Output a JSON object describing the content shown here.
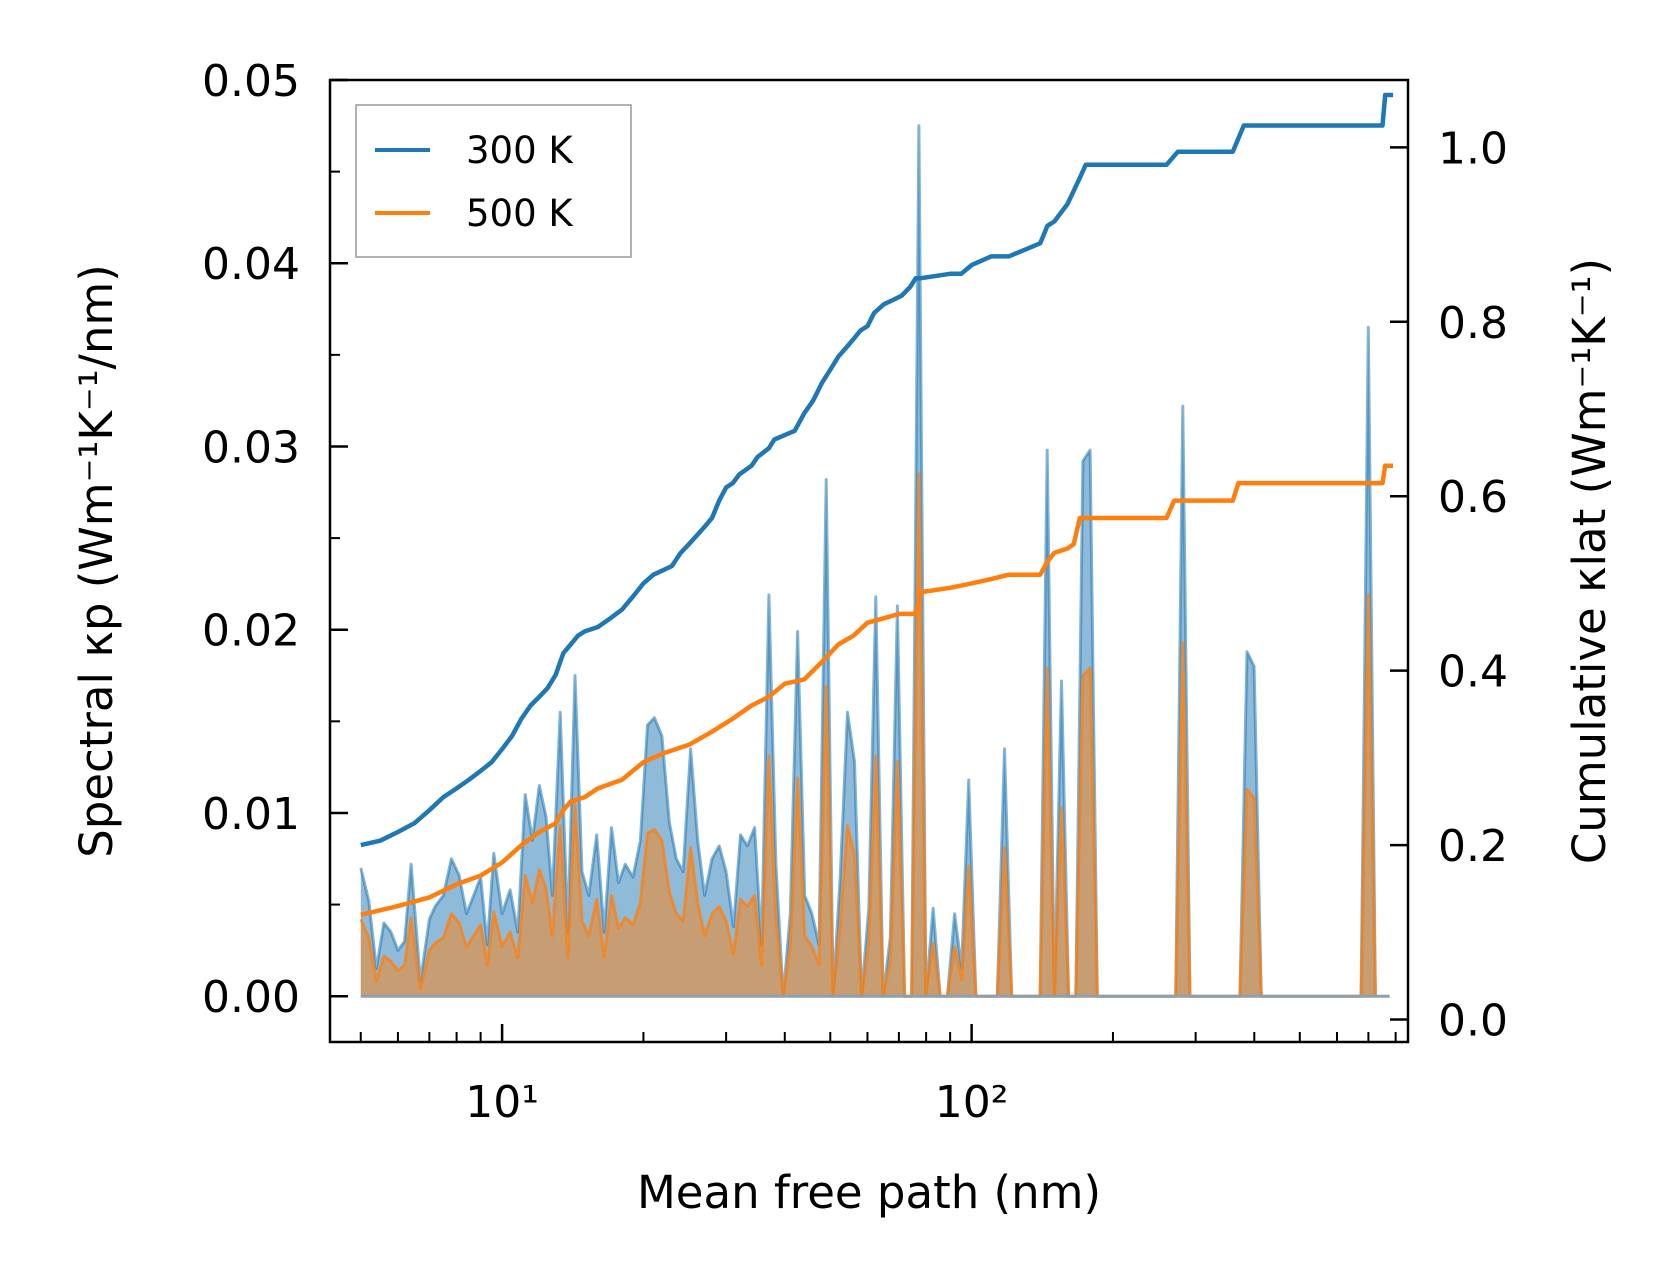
{
  "chart_data": {
    "type": "line",
    "xlabel": "Mean free path (nm)",
    "ylabel_left": "Spectral κp (Wm⁻¹K⁻¹/nm)",
    "ylabel_right": "Cumulative κlat (Wm⁻¹K⁻¹)",
    "x_scale": "log",
    "xlim": [
      4.3,
      850
    ],
    "ylim_left": [
      -0.0025,
      0.05
    ],
    "ylim_right": [
      -0.0258,
      1.0772
    ],
    "x_tick_labels": [
      "10¹",
      "10²"
    ],
    "y_left_tick_labels": [
      "0.00",
      "0.01",
      "0.02",
      "0.03",
      "0.04",
      "0.05"
    ],
    "y_right_tick_labels": [
      "0.0",
      "0.2",
      "0.4",
      "0.6",
      "0.8",
      "1.0"
    ],
    "legend": {
      "location": "upper-left",
      "entries": [
        "300 K",
        "500 K"
      ]
    },
    "colors": {
      "300 K": "#1f77b4",
      "500 K": "#ff7f0e"
    },
    "spectral_x": [
      5.0,
      5.2,
      5.4,
      5.6,
      5.8,
      6.0,
      6.2,
      6.4,
      6.7,
      7.0,
      7.2,
      7.5,
      7.8,
      8.1,
      8.4,
      8.7,
      9.0,
      9.3,
      9.6,
      10.0,
      10.4,
      10.8,
      11.2,
      11.6,
      12.0,
      12.4,
      12.8,
      13.3,
      13.8,
      14.3,
      14.8,
      15.3,
      15.9,
      16.5,
      17.1,
      17.7,
      18.3,
      19.0,
      19.7,
      20.4,
      21.1,
      21.9,
      22.7,
      23.5,
      24.3,
      25.2,
      26.1,
      27.0,
      28.0,
      29.0,
      30.0,
      31.1,
      32.2,
      33.3,
      34.5,
      35.7,
      37.0,
      38.3,
      39.7,
      41.1,
      42.6,
      44.1,
      45.7,
      47.3,
      49.0,
      50.7,
      52.5,
      54.4,
      56.3,
      58.3,
      60.4,
      62.5,
      64.8,
      67.1,
      69.5,
      72.0,
      74.5,
      77.2,
      79.9,
      82.8,
      85.7,
      88.8,
      92.0,
      95.2,
      98.6,
      102.1,
      105.8,
      109.5,
      113.4,
      117.5,
      121.7,
      126.0,
      130.5,
      135.1,
      139.9,
      144.9,
      150.1,
      155.4,
      160.9,
      166.7,
      172.6,
      178.8,
      185.2,
      191.7,
      198.6,
      205.6,
      212.9,
      220.5,
      228.4,
      236.5,
      244.9,
      253.6,
      262.7,
      272.0,
      281.7,
      291.8,
      302.1,
      312.9,
      324.1,
      335.6,
      347.5,
      359.9,
      372.7,
      386.0,
      399.7,
      414.0,
      428.7,
      444.0,
      459.8,
      476.1,
      493.1,
      510.6,
      528.8,
      547.6,
      567.1,
      587.3,
      608.2,
      629.8,
      652.2,
      675.4,
      699.5,
      724.4,
      750.2,
      776.9
    ],
    "series": [
      {
        "name": "300 K",
        "spectral": [
          0.007,
          0.0052,
          0.0015,
          0.004,
          0.0035,
          0.0025,
          0.003,
          0.0072,
          0.0008,
          0.0042,
          0.0049,
          0.0055,
          0.0075,
          0.0066,
          0.0045,
          0.0055,
          0.0065,
          0.0028,
          0.0078,
          0.0045,
          0.0058,
          0.0035,
          0.011,
          0.0085,
          0.0115,
          0.0098,
          0.0055,
          0.0155,
          0.0035,
          0.0175,
          0.0068,
          0.0055,
          0.0088,
          0.0035,
          0.0092,
          0.0062,
          0.0072,
          0.0065,
          0.0085,
          0.0148,
          0.0152,
          0.0142,
          0.0095,
          0.0075,
          0.0068,
          0.0135,
          0.0085,
          0.0055,
          0.0075,
          0.0082,
          0.0068,
          0.0038,
          0.0088,
          0.0082,
          0.0092,
          0.0028,
          0.0219,
          0.0072,
          0.0,
          0.0045,
          0.0199,
          0.0055,
          0.0045,
          0.0028,
          0.0282,
          0.0,
          0.0065,
          0.0155,
          0.0128,
          0.0,
          0.0048,
          0.0218,
          0.0,
          0.0032,
          0.0213,
          0.0,
          0.0,
          0.0475,
          0.0,
          0.0048,
          0.0,
          0.0,
          0.0045,
          0.0015,
          0.0118,
          0.0,
          0.0,
          0.0,
          0.0,
          0.0135,
          0.0,
          0.0,
          0.0,
          0.0,
          0.0,
          0.0298,
          0.0,
          0.0172,
          0.0,
          0.0,
          0.0292,
          0.0298,
          0.0,
          0.0,
          0.0,
          0.0,
          0.0,
          0.0,
          0.0,
          0.0,
          0.0,
          0.0,
          0.0,
          0.0,
          0.0322,
          0.0,
          0.0,
          0.0,
          0.0,
          0.0,
          0.0,
          0.0,
          0.0,
          0.0188,
          0.018,
          0.0,
          0.0,
          0.0,
          0.0,
          0.0,
          0.0,
          0.0,
          0.0,
          0.0,
          0.0,
          0.0,
          0.0,
          0.0,
          0.0,
          0.0,
          0.0365,
          0.0
        ],
        "cumulative_x": [
          5.0,
          5.5,
          6.0,
          6.5,
          7.0,
          7.5,
          8.0,
          8.5,
          9.0,
          9.5,
          10.0,
          10.5,
          11.0,
          11.5,
          12.0,
          12.5,
          13.0,
          13.5,
          14.0,
          14.5,
          15.0,
          16.0,
          17.0,
          18.0,
          19.0,
          20.0,
          21.0,
          22.0,
          23.0,
          24.0,
          25.0,
          26.0,
          27.0,
          28.0,
          29.0,
          30.0,
          31.0,
          32.0,
          33.0,
          34.0,
          35.0,
          37.0,
          38.0,
          40.0,
          42.0,
          44.0,
          46.0,
          48.0,
          50.0,
          52.0,
          54.0,
          56.0,
          58.0,
          60.0,
          62.0,
          65.0,
          68.0,
          71.0,
          74.0,
          76.0,
          78.0,
          90.0,
          95.0,
          100.0,
          110.0,
          120.0,
          140.0,
          145.0,
          150.0,
          160.0,
          170.0,
          175.0,
          260.0,
          275.0,
          360.0,
          380.0,
          750.0,
          760.0,
          790.0
        ],
        "cumulative": [
          0.2,
          0.205,
          0.215,
          0.225,
          0.24,
          0.255,
          0.265,
          0.275,
          0.285,
          0.295,
          0.31,
          0.325,
          0.345,
          0.36,
          0.37,
          0.38,
          0.395,
          0.42,
          0.43,
          0.44,
          0.445,
          0.45,
          0.46,
          0.47,
          0.485,
          0.5,
          0.51,
          0.515,
          0.52,
          0.535,
          0.545,
          0.555,
          0.565,
          0.575,
          0.595,
          0.61,
          0.615,
          0.625,
          0.63,
          0.635,
          0.645,
          0.655,
          0.665,
          0.67,
          0.675,
          0.695,
          0.71,
          0.73,
          0.745,
          0.76,
          0.77,
          0.78,
          0.79,
          0.795,
          0.81,
          0.82,
          0.825,
          0.83,
          0.84,
          0.85,
          0.85,
          0.855,
          0.855,
          0.865,
          0.875,
          0.875,
          0.89,
          0.91,
          0.915,
          0.935,
          0.965,
          0.98,
          0.98,
          0.995,
          0.995,
          1.025,
          1.025,
          1.06,
          1.06
        ]
      },
      {
        "name": "500 K",
        "spectral": [
          0.0042,
          0.0032,
          0.0008,
          0.0022,
          0.0019,
          0.0014,
          0.0017,
          0.0043,
          0.0004,
          0.0025,
          0.0029,
          0.0032,
          0.0045,
          0.004,
          0.0027,
          0.0033,
          0.0039,
          0.0017,
          0.0046,
          0.0027,
          0.0035,
          0.0021,
          0.0066,
          0.0051,
          0.0069,
          0.0059,
          0.0033,
          0.0093,
          0.0021,
          0.0105,
          0.0041,
          0.0033,
          0.0053,
          0.0021,
          0.0055,
          0.0037,
          0.0043,
          0.0039,
          0.0051,
          0.0089,
          0.0091,
          0.0085,
          0.0057,
          0.0045,
          0.0041,
          0.0081,
          0.0051,
          0.0033,
          0.0045,
          0.0049,
          0.0041,
          0.0023,
          0.0053,
          0.0049,
          0.0055,
          0.0017,
          0.0131,
          0.0043,
          0.0,
          0.0027,
          0.0119,
          0.0033,
          0.0027,
          0.0017,
          0.0169,
          0.0,
          0.0039,
          0.0093,
          0.0077,
          0.0,
          0.0029,
          0.0131,
          0.0,
          0.0019,
          0.0128,
          0.0,
          0.0,
          0.0285,
          0.0,
          0.0029,
          0.0,
          0.0,
          0.0027,
          0.0009,
          0.0071,
          0.0,
          0.0,
          0.0,
          0.0,
          0.0081,
          0.0,
          0.0,
          0.0,
          0.0,
          0.0,
          0.0179,
          0.0,
          0.0103,
          0.0,
          0.0,
          0.0175,
          0.0179,
          0.0,
          0.0,
          0.0,
          0.0,
          0.0,
          0.0,
          0.0,
          0.0,
          0.0,
          0.0,
          0.0,
          0.0,
          0.0193,
          0.0,
          0.0,
          0.0,
          0.0,
          0.0,
          0.0,
          0.0,
          0.0,
          0.0113,
          0.0108,
          0.0,
          0.0,
          0.0,
          0.0,
          0.0,
          0.0,
          0.0,
          0.0,
          0.0,
          0.0,
          0.0,
          0.0,
          0.0,
          0.0,
          0.0,
          0.0219,
          0.0
        ],
        "cumulative_x": [
          5.0,
          6.0,
          7.0,
          8.0,
          9.0,
          10.0,
          11.0,
          12.0,
          13.0,
          13.5,
          14.0,
          15.0,
          16.0,
          18.0,
          20.0,
          22.0,
          25.0,
          28.0,
          31.0,
          34.0,
          37.0,
          40.0,
          44.0,
          48.0,
          52.0,
          56.0,
          60.0,
          65.0,
          70.0,
          76.0,
          78.0,
          90.0,
          100.0,
          110.0,
          120.0,
          140.0,
          145.0,
          150.0,
          160.0,
          165.0,
          170.0,
          260.0,
          270.0,
          360.0,
          370.0,
          750.0,
          760.0,
          790.0
        ],
        "cumulative": [
          0.12,
          0.13,
          0.14,
          0.155,
          0.165,
          0.18,
          0.2,
          0.215,
          0.225,
          0.24,
          0.25,
          0.255,
          0.265,
          0.275,
          0.295,
          0.305,
          0.315,
          0.33,
          0.345,
          0.36,
          0.37,
          0.385,
          0.39,
          0.41,
          0.43,
          0.44,
          0.455,
          0.46,
          0.465,
          0.465,
          0.49,
          0.495,
          0.5,
          0.505,
          0.51,
          0.51,
          0.525,
          0.535,
          0.54,
          0.545,
          0.575,
          0.575,
          0.595,
          0.595,
          0.615,
          0.615,
          0.635,
          0.635
        ]
      }
    ]
  }
}
